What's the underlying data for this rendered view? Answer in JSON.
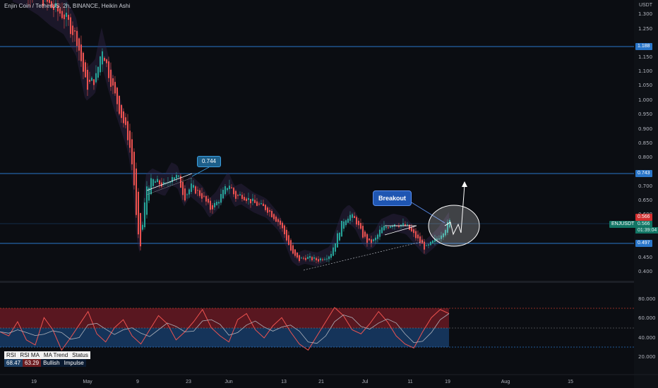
{
  "title": "Enjin Coin / TetherUS, 2h, BINANCE, Heikin Ashi",
  "axis_unit": "USDT",
  "price_ticks": [
    "1.300",
    "1.250",
    "1.150",
    "1.100",
    "1.050",
    "1.000",
    "0.950",
    "0.900",
    "0.850",
    "0.800",
    "0.700",
    "0.650",
    "0.600",
    "0.450",
    "0.400"
  ],
  "rsi_ticks": [
    "80.000",
    "60.000",
    "40.000",
    "20.000"
  ],
  "time_ticks": [
    "19",
    "May",
    "9",
    "23",
    "Jun",
    "13",
    "21",
    "Jul",
    "11",
    "19",
    "Aug",
    "15"
  ],
  "levels": {
    "upper": "1.188",
    "mid": "0.743",
    "lower": "0.497"
  },
  "current": {
    "price_red": "0.566",
    "price_green": "0.566",
    "countdown": "01:39:04",
    "ticker": "ENJUSDT"
  },
  "annotations": {
    "callout": "0.744",
    "breakout": "Breakout"
  },
  "rsi_table": {
    "headers": [
      "RSI",
      "RSI MA",
      "MA Trend",
      "Status"
    ],
    "values": [
      "68.47",
      "63.29",
      "Bullish",
      "Impulse"
    ]
  },
  "colors": {
    "background": "#0b0d12",
    "level_line": "#2a76c9",
    "up_candle": "#26a69a",
    "down_candle": "#ef5350",
    "rsi_red_fill": "#7a1d26",
    "rsi_blue_fill": "#1d4f8a"
  },
  "chart_data": {
    "type": "candlestick",
    "price_ylim": [
      0.38,
      1.33
    ],
    "rsi_ylim": [
      10,
      90
    ],
    "price_path": [
      [
        0.02,
        1.42
      ],
      [
        0.04,
        1.4
      ],
      [
        0.06,
        1.37
      ],
      [
        0.08,
        1.33
      ],
      [
        0.1,
        1.3
      ],
      [
        0.12,
        1.22
      ],
      [
        0.135,
        1.05
      ],
      [
        0.15,
        1.08
      ],
      [
        0.16,
        1.19
      ],
      [
        0.17,
        1.1
      ],
      [
        0.18,
        1.02
      ],
      [
        0.19,
        0.95
      ],
      [
        0.2,
        0.88
      ],
      [
        0.205,
        0.82
      ],
      [
        0.21,
        0.72
      ],
      [
        0.215,
        0.55
      ],
      [
        0.22,
        0.48
      ],
      [
        0.23,
        0.7
      ],
      [
        0.24,
        0.72
      ],
      [
        0.26,
        0.7
      ],
      [
        0.27,
        0.74
      ],
      [
        0.28,
        0.73
      ],
      [
        0.29,
        0.66
      ],
      [
        0.3,
        0.7
      ],
      [
        0.32,
        0.66
      ],
      [
        0.33,
        0.62
      ],
      [
        0.34,
        0.64
      ],
      [
        0.36,
        0.71
      ],
      [
        0.37,
        0.66
      ],
      [
        0.38,
        0.67
      ],
      [
        0.4,
        0.64
      ],
      [
        0.42,
        0.62
      ],
      [
        0.44,
        0.57
      ],
      [
        0.45,
        0.52
      ],
      [
        0.46,
        0.46
      ],
      [
        0.47,
        0.44
      ],
      [
        0.48,
        0.45
      ],
      [
        0.5,
        0.44
      ],
      [
        0.52,
        0.46
      ],
      [
        0.53,
        0.52
      ],
      [
        0.54,
        0.58
      ],
      [
        0.55,
        0.6
      ],
      [
        0.56,
        0.58
      ],
      [
        0.57,
        0.53
      ],
      [
        0.58,
        0.5
      ],
      [
        0.59,
        0.51
      ],
      [
        0.6,
        0.55
      ],
      [
        0.62,
        0.57
      ],
      [
        0.64,
        0.56
      ],
      [
        0.655,
        0.52
      ],
      [
        0.67,
        0.48
      ],
      [
        0.68,
        0.5
      ],
      [
        0.69,
        0.52
      ],
      [
        0.7,
        0.55
      ],
      [
        0.71,
        0.58
      ]
    ],
    "rsi_samples": [
      48,
      44,
      58,
      40,
      35,
      62,
      50,
      30,
      42,
      55,
      68,
      46,
      38,
      52,
      60,
      44,
      36,
      50,
      64,
      56,
      40,
      48,
      58,
      70,
      52,
      44,
      38,
      60,
      66,
      50,
      42,
      54,
      62,
      48,
      36,
      30,
      44,
      58,
      72,
      64,
      50,
      46,
      56,
      68,
      58,
      44,
      36,
      32,
      48,
      62,
      70,
      66
    ]
  }
}
